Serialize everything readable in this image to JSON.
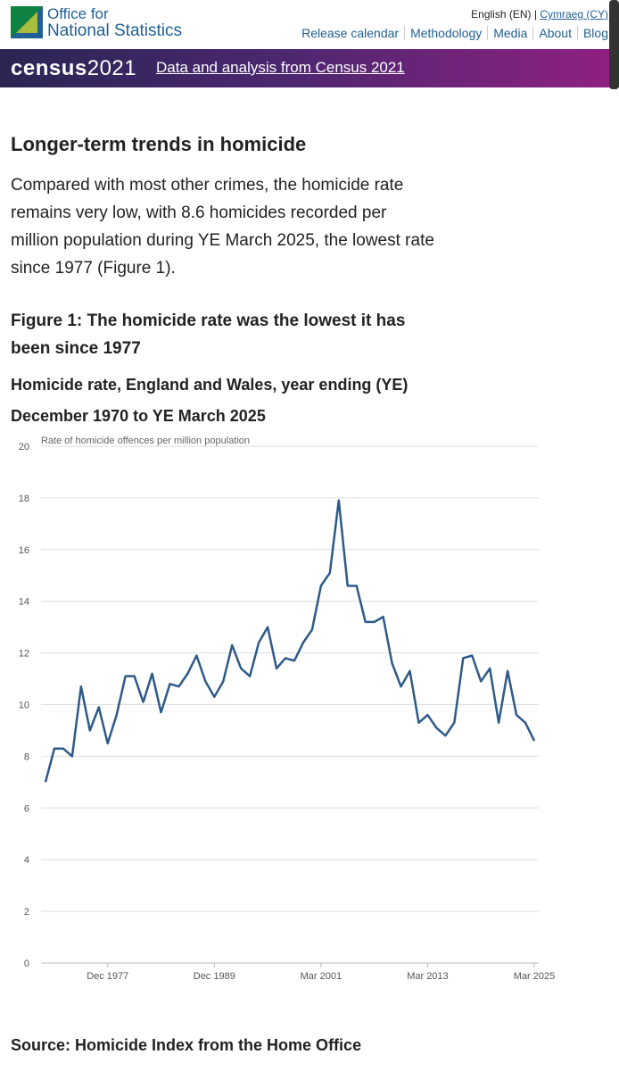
{
  "header": {
    "logo_line1": "Office for",
    "logo_line2": "National Statistics",
    "lang_en": "English (EN)",
    "lang_separator": "|",
    "lang_cy": "Cymraeg (CY)",
    "nav": [
      "Release calendar",
      "Methodology",
      "Media",
      "About",
      "Blog"
    ]
  },
  "banner": {
    "brand_word": "census",
    "brand_year": "2021",
    "link": "Data and analysis from Census 2021"
  },
  "article": {
    "heading": "Longer-term trends in homicide",
    "paragraph": "Compared with most other crimes, the homicide rate remains very low, with 8.6 homicides recorded per million population during YE March 2025, the lowest rate since 1977 (Figure 1).",
    "figure_title": "Figure 1: The homicide rate was the lowest it has been since 1977",
    "figure_subtitle": "Homicide rate, England and Wales, year ending (YE) December 1970 to YE March 2025",
    "source": "Source: Homicide Index from the Home Office"
  },
  "chart_data": {
    "type": "line",
    "y_label": "Rate of homicide offences per million population",
    "categories": [
      null,
      null,
      null,
      null,
      null,
      null,
      null,
      "Dec 1977",
      null,
      null,
      null,
      null,
      null,
      null,
      null,
      null,
      null,
      null,
      null,
      "Dec 1989",
      null,
      null,
      null,
      null,
      null,
      null,
      null,
      null,
      null,
      null,
      null,
      "Mar 2001",
      null,
      null,
      null,
      null,
      null,
      null,
      null,
      null,
      null,
      null,
      null,
      "Mar 2013",
      null,
      null,
      null,
      null,
      null,
      null,
      null,
      null,
      null,
      null,
      null,
      "Mar 2025"
    ],
    "series": [
      {
        "color": "#2e5a88",
        "values": [
          7.0,
          8.3,
          8.3,
          8.0,
          10.7,
          9.0,
          9.9,
          8.5,
          9.6,
          11.1,
          11.1,
          10.1,
          11.2,
          9.7,
          10.8,
          10.7,
          11.2,
          11.9,
          10.9,
          10.3,
          10.9,
          12.3,
          11.4,
          11.1,
          12.4,
          13.0,
          11.4,
          11.8,
          11.7,
          12.4,
          12.9,
          14.6,
          15.1,
          17.9,
          14.6,
          14.6,
          13.2,
          13.2,
          13.4,
          11.6,
          10.7,
          11.3,
          9.3,
          9.6,
          9.1,
          8.8,
          9.3,
          11.8,
          11.9,
          10.9,
          11.4,
          9.3,
          11.3,
          9.6,
          9.3,
          8.6
        ]
      }
    ],
    "ylim": [
      0,
      20
    ],
    "yticks": [
      0,
      2,
      4,
      6,
      8,
      10,
      12,
      14,
      16,
      18,
      20
    ],
    "grid": true
  }
}
